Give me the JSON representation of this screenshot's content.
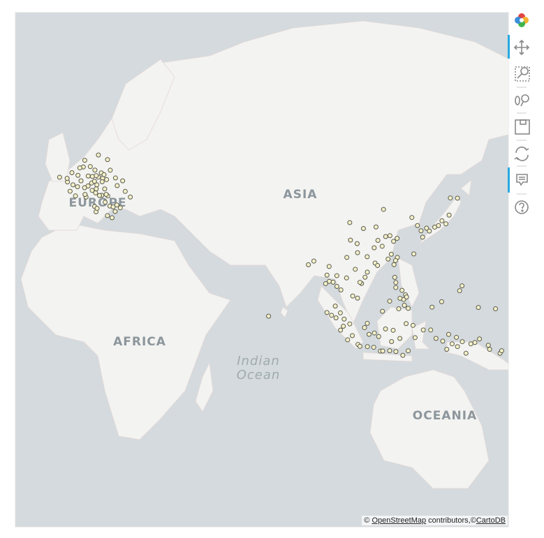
{
  "map": {
    "labels": [
      "EUROPE",
      "ASIA",
      "AFRICA",
      "Indian",
      "Ocean",
      "OCEANIA"
    ],
    "projection": "mercator",
    "xlim": [
      -21,
      163
    ],
    "ylim": [
      -59,
      75
    ],
    "point_color": "#f4f1c9",
    "point_outline": "#5a5a50",
    "points": [
      [
        2.35,
        48.86
      ],
      [
        4.35,
        50.85
      ],
      [
        4.9,
        52.37
      ],
      [
        6.96,
        50.94
      ],
      [
        8.68,
        50.11
      ],
      [
        11.58,
        48.14
      ],
      [
        13.4,
        52.52
      ],
      [
        9.99,
        53.55
      ],
      [
        7.45,
        46.95
      ],
      [
        8.54,
        47.38
      ],
      [
        6.14,
        46.2
      ],
      [
        12.5,
        41.9
      ],
      [
        9.19,
        45.46
      ],
      [
        11.25,
        43.77
      ],
      [
        12.33,
        45.44
      ],
      [
        14.27,
        40.85
      ],
      [
        16.37,
        48.21
      ],
      [
        19.04,
        47.5
      ],
      [
        14.42,
        50.08
      ],
      [
        4.83,
        45.76
      ],
      [
        5.37,
        43.3
      ],
      [
        1.44,
        43.6
      ],
      [
        -0.58,
        44.84
      ],
      [
        -1.55,
        47.22
      ],
      [
        -4.49,
        48.39
      ],
      [
        -1.68,
        48.11
      ],
      [
        0.1,
        49.49
      ],
      [
        3.06,
        50.63
      ],
      [
        7.75,
        48.58
      ],
      [
        6.18,
        48.69
      ],
      [
        10.0,
        48.4
      ],
      [
        9.18,
        48.78
      ],
      [
        11.08,
        49.45
      ],
      [
        12.1,
        49.0
      ],
      [
        13.05,
        47.8
      ],
      [
        11.4,
        47.27
      ],
      [
        8.95,
        44.41
      ],
      [
        7.68,
        45.07
      ],
      [
        10.4,
        43.72
      ],
      [
        13.5,
        43.6
      ],
      [
        15.5,
        40.6
      ],
      [
        16.87,
        41.13
      ],
      [
        18.17,
        40.35
      ],
      [
        15.09,
        37.5
      ],
      [
        13.36,
        38.12
      ],
      [
        9.11,
        39.22
      ],
      [
        8.56,
        40.73
      ],
      [
        9.5,
        40.2
      ],
      [
        16.25,
        39.3
      ],
      [
        17.0,
        46.3
      ],
      [
        20.0,
        44.8
      ],
      [
        21.9,
        43.3
      ],
      [
        2.2,
        46.0
      ],
      [
        3.5,
        47.5
      ],
      [
        5.0,
        44.0
      ],
      [
        9.4,
        46.5
      ],
      [
        12.9,
        44.0
      ],
      [
        0.5,
        46.5
      ],
      [
        96.15,
        16.8
      ],
      [
        98.98,
        18.79
      ],
      [
        100.5,
        13.75
      ],
      [
        99.0,
        15.0
      ],
      [
        97.6,
        16.5
      ],
      [
        98.4,
        7.9
      ],
      [
        100.3,
        5.4
      ],
      [
        101.7,
        3.14
      ],
      [
        103.8,
        1.35
      ],
      [
        102.6,
        18.0
      ],
      [
        105.85,
        21.03
      ],
      [
        106.7,
        10.8
      ],
      [
        108.2,
        16.05
      ],
      [
        104.9,
        11.56
      ],
      [
        107.6,
        16.46
      ],
      [
        96.1,
        21.97
      ],
      [
        95.3,
        19.0
      ],
      [
        94.8,
        16.0
      ],
      [
        88.36,
        22.57
      ],
      [
        90.4,
        23.8
      ],
      [
        113.26,
        23.13
      ],
      [
        114.17,
        22.3
      ],
      [
        110.3,
        25.27
      ],
      [
        106.55,
        29.56
      ],
      [
        104.07,
        30.67
      ],
      [
        102.7,
        25.05
      ],
      [
        108.9,
        34.27
      ],
      [
        116.4,
        39.9
      ],
      [
        121.47,
        31.23
      ],
      [
        120.15,
        30.28
      ],
      [
        118.8,
        32.06
      ],
      [
        114.3,
        30.58
      ],
      [
        112.9,
        28.2
      ],
      [
        119.3,
        26.08
      ],
      [
        118.1,
        24.48
      ],
      [
        110.35,
        20.02
      ],
      [
        109.5,
        18.25
      ],
      [
        117.2,
        31.8
      ],
      [
        115.9,
        28.7
      ],
      [
        113.6,
        34.75
      ],
      [
        103.8,
        36.06
      ],
      [
        106.7,
        26.6
      ],
      [
        120.3,
        22.6
      ],
      [
        121.56,
        25.04
      ],
      [
        120.9,
        24.0
      ],
      [
        126.98,
        37.57
      ],
      [
        129.07,
        35.18
      ],
      [
        139.69,
        35.69
      ],
      [
        135.5,
        34.69
      ],
      [
        130.4,
        33.59
      ],
      [
        132.45,
        34.39
      ],
      [
        136.9,
        35.18
      ],
      [
        140.87,
        38.27
      ],
      [
        141.35,
        43.06
      ],
      [
        138.2,
        36.6
      ],
      [
        133.5,
        33.5
      ],
      [
        131.0,
        31.6
      ],
      [
        127.7,
        26.2
      ],
      [
        144.0,
        43.0
      ],
      [
        120.98,
        14.6
      ],
      [
        123.9,
        10.3
      ],
      [
        125.6,
        7.07
      ],
      [
        122.56,
        10.72
      ],
      [
        121.0,
        16.4
      ],
      [
        124.6,
        12.0
      ],
      [
        120.6,
        18.2
      ],
      [
        118.7,
        9.7
      ],
      [
        123.3,
        13.6
      ],
      [
        125.0,
        11.2
      ],
      [
        122.07,
        6.9
      ],
      [
        124.2,
        8.2
      ],
      [
        106.85,
        -6.2
      ],
      [
        107.6,
        -6.9
      ],
      [
        110.4,
        -7.0
      ],
      [
        112.75,
        -7.25
      ],
      [
        115.2,
        -8.65
      ],
      [
        116.1,
        -8.6
      ],
      [
        98.67,
        3.59
      ],
      [
        100.35,
        -0.95
      ],
      [
        104.75,
        -2.98
      ],
      [
        101.4,
        0.5
      ],
      [
        110.35,
        1.55
      ],
      [
        116.0,
        5.98
      ],
      [
        114.6,
        -3.3
      ],
      [
        109.3,
        -0.03
      ],
      [
        117.15,
        -0.5
      ],
      [
        119.4,
        -5.15
      ],
      [
        124.84,
        1.47
      ],
      [
        122.5,
        -4.0
      ],
      [
        120.0,
        -1.0
      ],
      [
        128.18,
        -3.7
      ],
      [
        127.4,
        0.8
      ],
      [
        131.25,
        -0.88
      ],
      [
        134.0,
        -0.9
      ],
      [
        140.7,
        -2.53
      ],
      [
        138.5,
        -5.0
      ],
      [
        143.6,
        -3.6
      ],
      [
        145.8,
        -5.2
      ],
      [
        147.18,
        -9.44
      ],
      [
        150.5,
        -5.5
      ],
      [
        152.2,
        -4.2
      ],
      [
        155.5,
        -6.5
      ],
      [
        159.9,
        -9.43
      ],
      [
        160.5,
        -8.5
      ],
      [
        123.6,
        -10.2
      ],
      [
        121.0,
        -8.8
      ],
      [
        118.7,
        -8.5
      ],
      [
        125.6,
        -8.55
      ],
      [
        95.3,
        5.55
      ],
      [
        97.0,
        4.5
      ],
      [
        103.0,
        -4.5
      ],
      [
        113.0,
        -2.0
      ],
      [
        111.0,
        -2.5
      ],
      [
        136.0,
        -4.0
      ],
      [
        140.0,
        -8.0
      ],
      [
        142.0,
        -6.0
      ],
      [
        144.0,
        -7.0
      ],
      [
        149.0,
        -6.0
      ],
      [
        156.0,
        -8.0
      ],
      [
        144.8,
        13.45
      ],
      [
        145.7,
        15.2
      ],
      [
        134.5,
        7.5
      ],
      [
        138.1,
        9.5
      ],
      [
        151.8,
        7.4
      ],
      [
        158.2,
        6.9
      ],
      [
        73.5,
        4.2
      ]
    ]
  },
  "attribution": {
    "prefix": "©",
    "osm": "OpenStreetMap",
    "middle": "contributors,©",
    "carto": "CartoDB"
  }
}
